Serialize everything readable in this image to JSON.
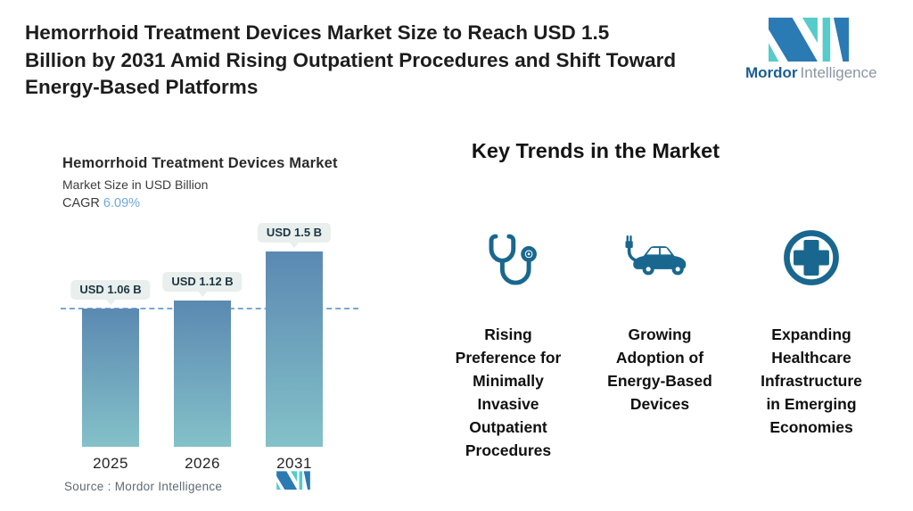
{
  "header": {
    "title": "Hemorrhoid Treatment Devices Market Size to Reach USD 1.5 Billion by 2031 Amid Rising Outpatient Procedures and Shift Toward Energy-Based Platforms",
    "title_lines": [
      "Hemorrhoid Treatment Devices Market Size to Reach USD 1.5",
      "Billion by 2031 Amid Rising Outpatient Procedures and Shift Toward",
      "Energy-Based Platforms"
    ]
  },
  "brand": {
    "name_bold": "Mordor",
    "name_light": "Intelligence"
  },
  "chart": {
    "cagr_label": "CAGR",
    "source": "Source :  Mordor Intelligence"
  },
  "chart_data": {
    "type": "bar",
    "title": "Hemorrhoid Treatment Devices Market",
    "ylabel": "Market Size in USD Billion",
    "cagr": "6.09%",
    "categories": [
      "2025",
      "2026",
      "2031"
    ],
    "values": [
      1.06,
      1.12,
      1.5
    ],
    "bar_labels": [
      "USD 1.06 B",
      "USD 1.12 B",
      "USD 1.5 B"
    ],
    "ylim": [
      0,
      1.65
    ],
    "reference_line": 1.06,
    "grid": false,
    "legend": false,
    "xlabel": ""
  },
  "trends": {
    "heading": "Key Trends in the Market",
    "items": [
      {
        "icon": "stethoscope-icon",
        "text": "Rising Preference for Minimally Invasive Outpatient Procedures",
        "lines": [
          "Rising",
          "Preference for",
          "Minimally",
          "Invasive",
          "Outpatient",
          "Procedures"
        ]
      },
      {
        "icon": "electric-car-icon",
        "text": "Growing Adoption of Energy-Based Devices",
        "lines": [
          "Growing",
          "Adoption of",
          "Energy-Based",
          "Devices"
        ]
      },
      {
        "icon": "medical-cross-icon",
        "text": "Expanding Healthcare Infrastructure in Emerging Economies",
        "lines": [
          "Expanding",
          "Healthcare",
          "Infrastructure",
          "in Emerging",
          "Economies"
        ]
      }
    ]
  },
  "colors": {
    "accent_blue": "#6fa9dc",
    "bar_gradient_top": "#5b89b1",
    "bar_gradient_bottom": "#84c1c9",
    "dashed_line": "#79a8d5",
    "badge_bg": "#e8efec",
    "badge_text": "#1d3642",
    "trend_icon": "#19678f",
    "logo_dark_blue": "#2a7ab4",
    "logo_teal": "#56cbc9",
    "logo_text_dark": "#1b5e94",
    "logo_text_light": "#8b95a4"
  }
}
